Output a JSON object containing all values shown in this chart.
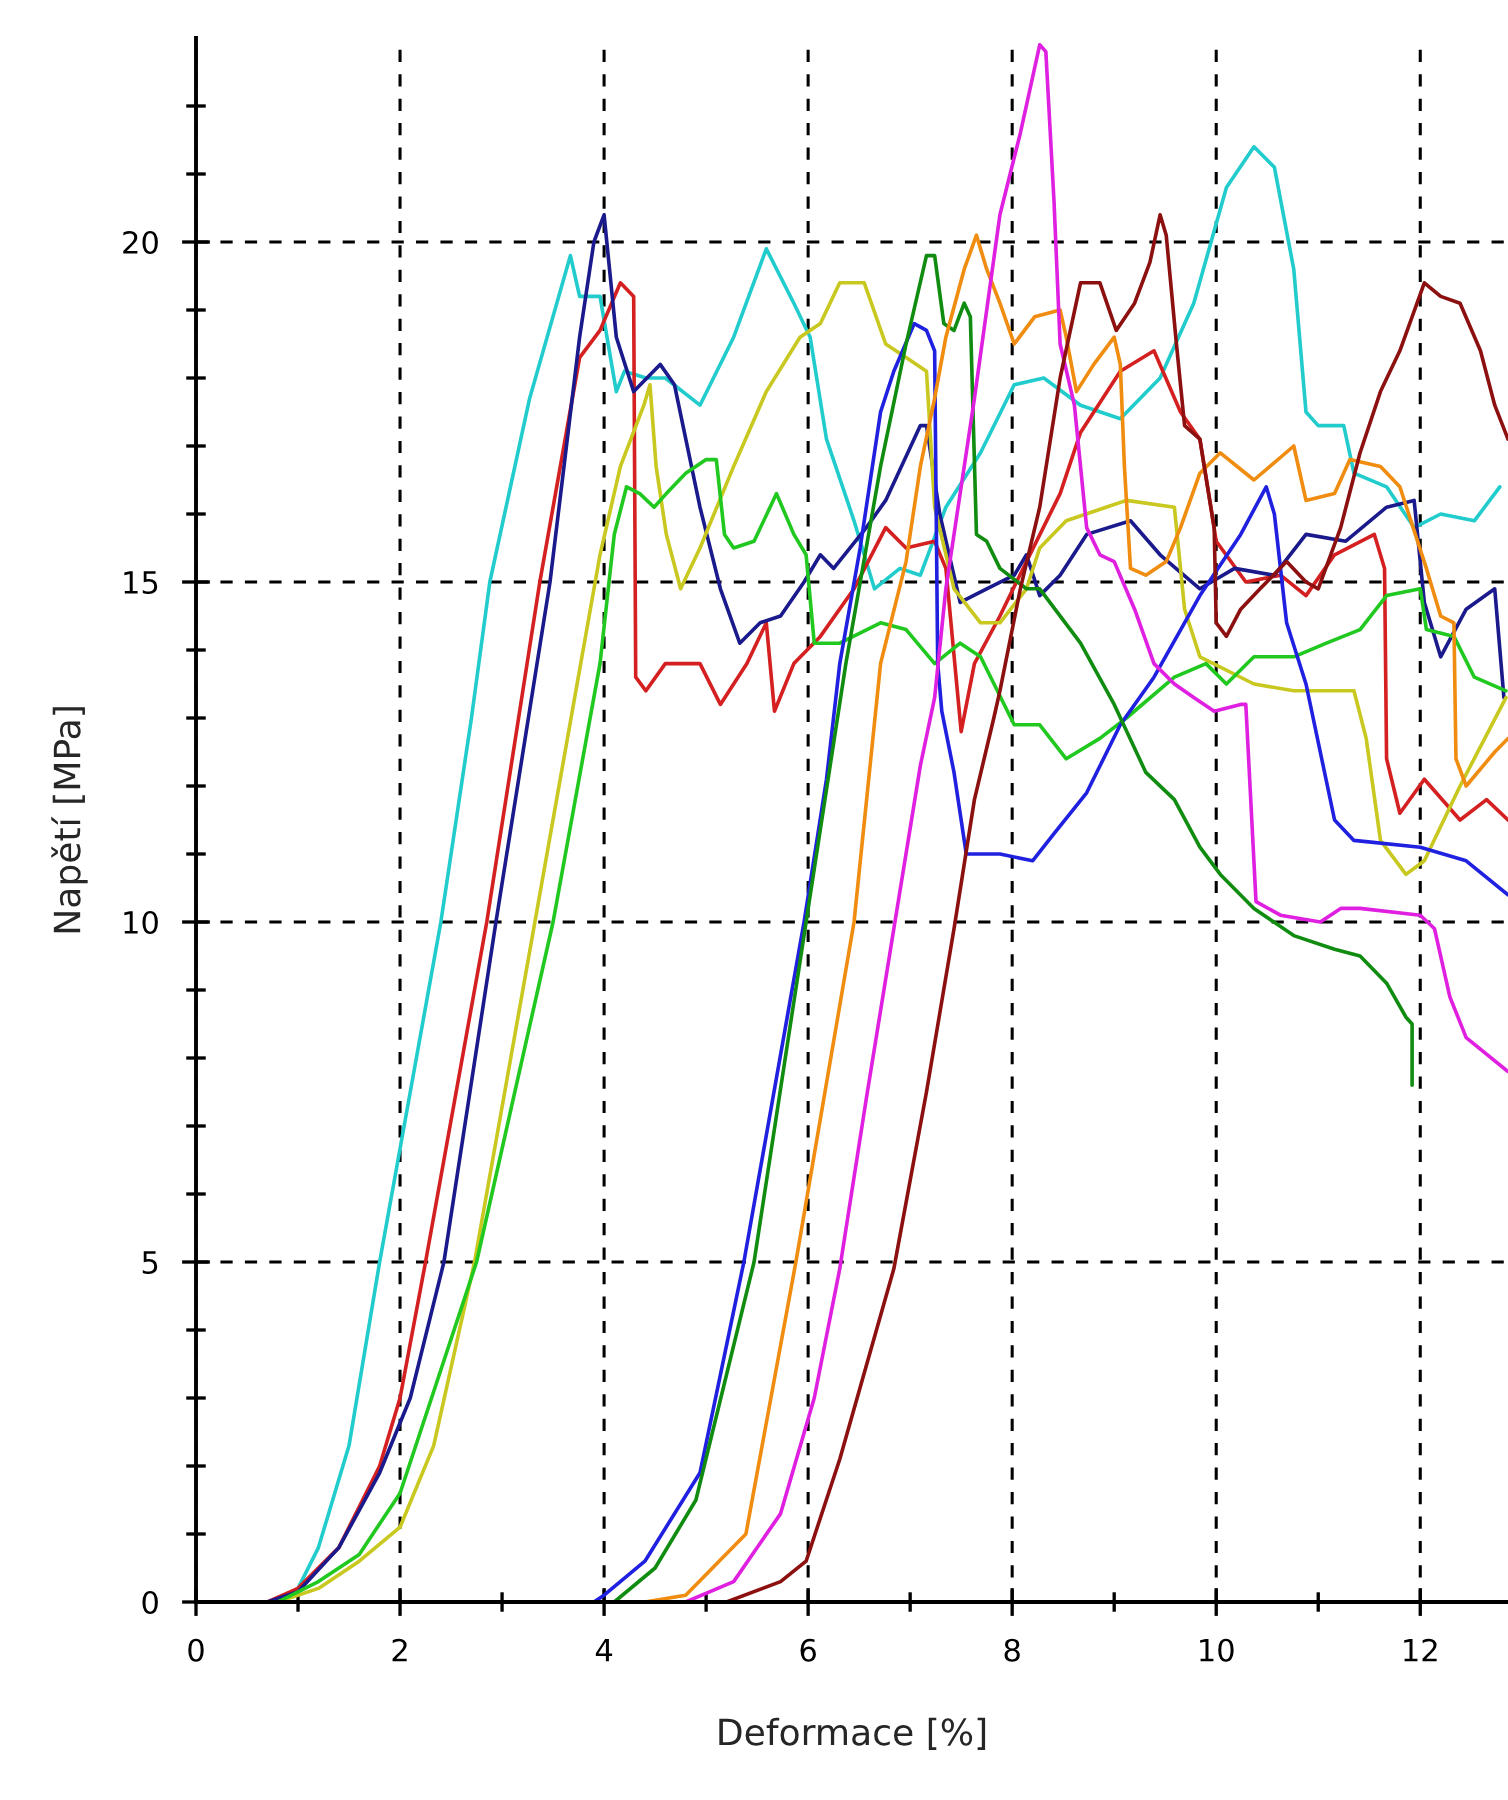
{
  "chart_data": {
    "type": "line",
    "xlabel": "Deformace [%]",
    "ylabel": "Napětí [MPa]",
    "xlim": [
      0,
      12.86
    ],
    "ylim": [
      0,
      23
    ],
    "xticks": [
      0,
      {
        "value": 1,
        "label": null
      },
      2,
      {
        "value": 3,
        "label": null
      },
      4,
      {
        "value": 5,
        "label": null
      },
      6,
      {
        "value": 7,
        "label": null
      },
      8,
      {
        "value": 9,
        "label": null
      },
      10,
      {
        "value": 11,
        "label": null
      },
      12
    ],
    "yticks": [
      0,
      {
        "value": 1,
        "label": null
      },
      {
        "value": 2,
        "label": null
      },
      {
        "value": 3,
        "label": null
      },
      {
        "value": 4,
        "label": null
      },
      5,
      {
        "value": 6,
        "label": null
      },
      {
        "value": 7,
        "label": null
      },
      {
        "value": 8,
        "label": null
      },
      {
        "value": 9,
        "label": null
      },
      10,
      {
        "value": 11,
        "label": null
      },
      {
        "value": 12,
        "label": null
      },
      {
        "value": 13,
        "label": null
      },
      {
        "value": 14,
        "label": null
      },
      15,
      {
        "value": 16,
        "label": null
      },
      {
        "value": 17,
        "label": null
      },
      {
        "value": 18,
        "label": null
      },
      {
        "value": 19,
        "label": null
      },
      20,
      {
        "value": 21,
        "label": null
      },
      {
        "value": 22,
        "label": null
      }
    ],
    "grid": true,
    "line_style": "solid",
    "marker": "none",
    "legend": false,
    "series": [
      {
        "color": "#22cccc",
        "x": [
          0,
          0.8,
          1.0,
          1.2,
          1.5,
          1.8,
          2.1,
          2.4,
          2.7,
          2.88,
          3.27,
          3.67,
          3.76,
          3.96,
          4.12,
          4.2,
          4.41,
          4.6,
          4.94,
          5.27,
          5.59,
          5.86,
          6.02,
          6.18,
          6.45,
          6.65,
          6.9,
          7.1,
          7.35,
          7.69,
          8.02,
          8.31,
          8.67,
          9.06,
          9.45,
          9.78,
          10.1,
          10.37,
          10.57,
          10.76,
          10.88,
          11.0,
          11.25,
          11.35,
          11.67,
          11.94,
          12.2,
          12.53,
          12.78
        ],
        "values": [
          0,
          0,
          0.2,
          0.8,
          2.3,
          5.0,
          7.5,
          10.0,
          13.0,
          15.0,
          17.7,
          19.8,
          19.2,
          19.2,
          17.8,
          18.1,
          18.0,
          18.0,
          17.6,
          18.6,
          19.9,
          19.1,
          18.6,
          17.1,
          15.9,
          14.9,
          15.2,
          15.1,
          16.1,
          16.9,
          17.9,
          18.0,
          17.6,
          17.4,
          18.0,
          19.1,
          20.8,
          21.4,
          21.1,
          19.6,
          17.5,
          17.3,
          17.3,
          16.6,
          16.4,
          15.8,
          16.0,
          15.9,
          16.4
        ]
      },
      {
        "color": "#d42020",
        "x": [
          0,
          0.7,
          1.0,
          1.4,
          1.8,
          2.0,
          2.25,
          2.85,
          3.37,
          3.76,
          3.96,
          4.16,
          4.29,
          4.31,
          4.41,
          4.6,
          4.94,
          5.14,
          5.4,
          5.59,
          5.67,
          5.86,
          6.12,
          6.45,
          6.76,
          6.96,
          7.24,
          7.35,
          7.5,
          7.63,
          7.88,
          8.14,
          8.47,
          8.67,
          9.06,
          9.39,
          9.65,
          9.84,
          10.0,
          10.29,
          10.63,
          10.88,
          11.16,
          11.55,
          11.65,
          11.67,
          11.8,
          12.04,
          12.39,
          12.65,
          12.86
        ],
        "values": [
          0,
          0,
          0.2,
          0.8,
          2.0,
          3.0,
          5.0,
          10.0,
          15.0,
          18.3,
          18.7,
          19.4,
          19.2,
          13.6,
          13.4,
          13.8,
          13.8,
          13.2,
          13.8,
          14.4,
          13.1,
          13.8,
          14.2,
          14.9,
          15.8,
          15.5,
          15.6,
          15.2,
          12.8,
          13.8,
          14.5,
          15.3,
          16.3,
          17.2,
          18.1,
          18.4,
          17.5,
          17.1,
          15.6,
          15.0,
          15.1,
          14.8,
          15.4,
          15.7,
          15.2,
          12.4,
          11.6,
          12.1,
          11.5,
          11.8,
          11.5
        ]
      },
      {
        "color": "#1a1a8c",
        "x": [
          0,
          0.7,
          1.0,
          1.4,
          1.8,
          2.1,
          2.43,
          2.94,
          3.47,
          3.76,
          3.9,
          4.0,
          4.02,
          4.12,
          4.29,
          4.55,
          4.69,
          4.94,
          5.14,
          5.33,
          5.53,
          5.73,
          5.96,
          6.12,
          6.25,
          6.57,
          6.76,
          7.1,
          7.16,
          7.29,
          7.49,
          7.75,
          8.02,
          8.14,
          8.27,
          8.47,
          8.73,
          9.16,
          9.45,
          9.84,
          10.18,
          10.57,
          10.88,
          11.27,
          11.67,
          11.94,
          12.04,
          12.2,
          12.45,
          12.73,
          12.82
        ],
        "values": [
          0,
          0,
          0.15,
          0.8,
          1.9,
          3.0,
          5.0,
          10.0,
          15.0,
          18.6,
          20.0,
          20.4,
          20.1,
          18.6,
          17.8,
          18.2,
          17.9,
          16.1,
          14.9,
          14.1,
          14.4,
          14.5,
          15.0,
          15.4,
          15.2,
          15.8,
          16.2,
          17.3,
          17.3,
          16.0,
          14.7,
          14.9,
          15.1,
          15.4,
          14.8,
          15.1,
          15.7,
          15.9,
          15.4,
          14.9,
          15.2,
          15.1,
          15.7,
          15.6,
          16.1,
          16.2,
          14.7,
          13.9,
          14.6,
          14.9,
          13.3
        ]
      },
      {
        "color": "#c8c820",
        "x": [
          0,
          0.8,
          1.2,
          1.6,
          2.0,
          2.33,
          2.73,
          3.31,
          3.96,
          4.16,
          4.39,
          4.45,
          4.51,
          4.61,
          4.75,
          4.94,
          5.27,
          5.59,
          5.92,
          6.12,
          6.31,
          6.55,
          6.76,
          6.96,
          7.16,
          7.24,
          7.43,
          7.69,
          7.88,
          8.14,
          8.27,
          8.53,
          8.92,
          9.12,
          9.59,
          9.69,
          9.84,
          10.37,
          10.76,
          11.35,
          11.47,
          11.61,
          11.86,
          12.04,
          12.39,
          12.84
        ],
        "values": [
          0,
          0,
          0.2,
          0.6,
          1.1,
          2.3,
          5.0,
          9.9,
          15.4,
          16.7,
          17.6,
          17.9,
          16.7,
          15.7,
          14.9,
          15.5,
          16.7,
          17.8,
          18.6,
          18.8,
          19.4,
          19.4,
          18.5,
          18.3,
          18.1,
          16.1,
          14.9,
          14.4,
          14.4,
          14.9,
          15.5,
          15.9,
          16.1,
          16.2,
          16.1,
          14.6,
          13.9,
          13.5,
          13.4,
          13.4,
          12.7,
          11.2,
          10.7,
          10.9,
          12.0,
          13.3
        ]
      },
      {
        "color": "#20c820",
        "x": [
          0,
          0.8,
          1.2,
          1.6,
          2.0,
          2.75,
          3.5,
          3.96,
          4.1,
          4.22,
          4.35,
          4.49,
          4.61,
          4.8,
          5.0,
          5.1,
          5.18,
          5.27,
          5.47,
          5.69,
          5.86,
          5.98,
          6.06,
          6.31,
          6.71,
          6.96,
          7.24,
          7.49,
          7.69,
          8.02,
          8.27,
          8.53,
          8.86,
          9.12,
          9.59,
          9.9,
          10.1,
          10.37,
          10.76,
          11.08,
          11.41,
          11.67,
          12.0,
          12.06,
          12.33,
          12.53,
          12.84
        ],
        "values": [
          0,
          0,
          0.3,
          0.7,
          1.6,
          5.0,
          10.0,
          13.8,
          15.7,
          16.4,
          16.3,
          16.1,
          16.3,
          16.6,
          16.8,
          16.8,
          15.7,
          15.5,
          15.6,
          16.3,
          15.7,
          15.4,
          14.1,
          14.1,
          14.4,
          14.3,
          13.8,
          14.1,
          13.9,
          12.9,
          12.9,
          12.4,
          12.7,
          13.0,
          13.6,
          13.8,
          13.5,
          13.9,
          13.9,
          14.1,
          14.3,
          14.8,
          14.9,
          14.3,
          14.2,
          13.6,
          13.4
        ]
      },
      {
        "color": "#2020e0",
        "x": [
          0,
          3.9,
          4.0,
          4.4,
          4.94,
          5.37,
          5.96,
          6.18,
          6.31,
          6.51,
          6.71,
          6.84,
          7.04,
          7.16,
          7.24,
          7.27,
          7.31,
          7.43,
          7.55,
          7.88,
          8.2,
          8.41,
          8.73,
          9.06,
          9.39,
          9.84,
          10.24,
          10.49,
          10.57,
          10.69,
          10.88,
          11.16,
          11.35,
          12.0,
          12.45,
          12.86
        ],
        "values": [
          0,
          0,
          0.1,
          0.6,
          1.9,
          5.0,
          10.0,
          12.1,
          13.8,
          15.5,
          17.5,
          18.1,
          18.8,
          18.7,
          18.4,
          13.8,
          13.1,
          12.2,
          11.0,
          11.0,
          10.9,
          11.3,
          11.9,
          12.9,
          13.6,
          14.8,
          15.7,
          16.4,
          16.0,
          14.4,
          13.5,
          11.5,
          11.2,
          11.1,
          10.9,
          10.4
        ]
      },
      {
        "color": "#108c10",
        "x": [
          0,
          4.1,
          4.5,
          4.9,
          5.47,
          5.98,
          6.37,
          6.71,
          6.96,
          7.16,
          7.24,
          7.33,
          7.43,
          7.53,
          7.59,
          7.65,
          7.75,
          7.88,
          8.14,
          8.27,
          8.67,
          9.0,
          9.31,
          9.59,
          9.84,
          10.04,
          10.37,
          10.76,
          11.16,
          11.41,
          11.67,
          11.86,
          11.92,
          11.92
        ],
        "values": [
          0,
          0,
          0.5,
          1.5,
          5.0,
          10.0,
          13.8,
          16.7,
          18.5,
          19.8,
          19.8,
          18.8,
          18.7,
          19.1,
          18.9,
          15.7,
          15.6,
          15.2,
          14.9,
          14.9,
          14.1,
          13.2,
          12.2,
          11.8,
          11.1,
          10.7,
          10.2,
          9.8,
          9.6,
          9.5,
          9.1,
          8.6,
          8.5,
          7.6
        ]
      },
      {
        "color": "#f08c10",
        "x": [
          0,
          4.4,
          4.8,
          5.39,
          5.88,
          6.45,
          6.71,
          6.96,
          7.1,
          7.24,
          7.35,
          7.53,
          7.65,
          7.75,
          7.88,
          8.02,
          8.22,
          8.47,
          8.53,
          8.63,
          8.8,
          9.0,
          9.06,
          9.1,
          9.16,
          9.31,
          9.51,
          9.65,
          9.84,
          10.04,
          10.37,
          10.76,
          10.88,
          11.16,
          11.31,
          11.61,
          11.8,
          12.06,
          12.2,
          12.33,
          12.35,
          12.45,
          12.73,
          12.86
        ],
        "values": [
          0,
          0,
          0.1,
          1.0,
          5.0,
          10.0,
          13.8,
          15.3,
          16.7,
          17.7,
          18.6,
          19.6,
          20.1,
          19.6,
          19.1,
          18.5,
          18.9,
          19.0,
          18.6,
          17.8,
          18.2,
          18.6,
          18.2,
          16.7,
          15.2,
          15.1,
          15.3,
          15.8,
          16.6,
          16.9,
          16.5,
          17.0,
          16.2,
          16.3,
          16.8,
          16.7,
          16.4,
          15.2,
          14.5,
          14.4,
          12.4,
          12.0,
          12.5,
          12.7
        ]
      },
      {
        "color": "#e020e0",
        "x": [
          0,
          4.8,
          5.27,
          5.73,
          6.06,
          6.31,
          6.57,
          6.84,
          7.1,
          7.24,
          7.35,
          7.63,
          7.88,
          8.08,
          8.27,
          8.33,
          8.41,
          8.47,
          8.61,
          8.73,
          8.86,
          9.0,
          9.2,
          9.39,
          9.59,
          9.78,
          9.98,
          10.24,
          10.29,
          10.39,
          10.63,
          11.02,
          11.22,
          11.41,
          12.0,
          12.14,
          12.29,
          12.45,
          12.86
        ],
        "values": [
          0,
          0,
          0.3,
          1.3,
          3.0,
          4.9,
          7.4,
          9.9,
          12.3,
          13.3,
          14.9,
          17.7,
          20.4,
          21.6,
          22.9,
          22.8,
          20.6,
          18.5,
          17.6,
          15.8,
          15.4,
          15.3,
          14.6,
          13.8,
          13.5,
          13.3,
          13.1,
          13.2,
          13.2,
          10.3,
          10.1,
          10.0,
          10.2,
          10.2,
          10.1,
          9.9,
          8.9,
          8.3,
          7.8
        ]
      },
      {
        "color": "#8c1010",
        "x": [
          0,
          5.2,
          5.73,
          5.98,
          6.31,
          6.84,
          7.16,
          7.43,
          7.63,
          7.82,
          7.88,
          8.08,
          8.27,
          8.47,
          8.67,
          8.86,
          9.02,
          9.2,
          9.35,
          9.45,
          9.51,
          9.61,
          9.69,
          9.84,
          9.98,
          10.0,
          10.1,
          10.24,
          10.43,
          10.69,
          10.88,
          11.0,
          11.22,
          11.41,
          11.61,
          11.8,
          12.04,
          12.2,
          12.39,
          12.59,
          12.73,
          12.86
        ],
        "values": [
          0,
          0,
          0.3,
          0.6,
          2.1,
          4.9,
          7.5,
          9.9,
          11.8,
          13.0,
          13.4,
          14.9,
          16.1,
          18.0,
          19.4,
          19.4,
          18.7,
          19.1,
          19.7,
          20.4,
          20.1,
          18.5,
          17.3,
          17.1,
          15.8,
          14.4,
          14.2,
          14.6,
          14.9,
          15.3,
          15.0,
          14.9,
          15.8,
          16.9,
          17.8,
          18.4,
          19.4,
          19.2,
          19.1,
          18.4,
          17.6,
          17.1
        ]
      }
    ]
  }
}
